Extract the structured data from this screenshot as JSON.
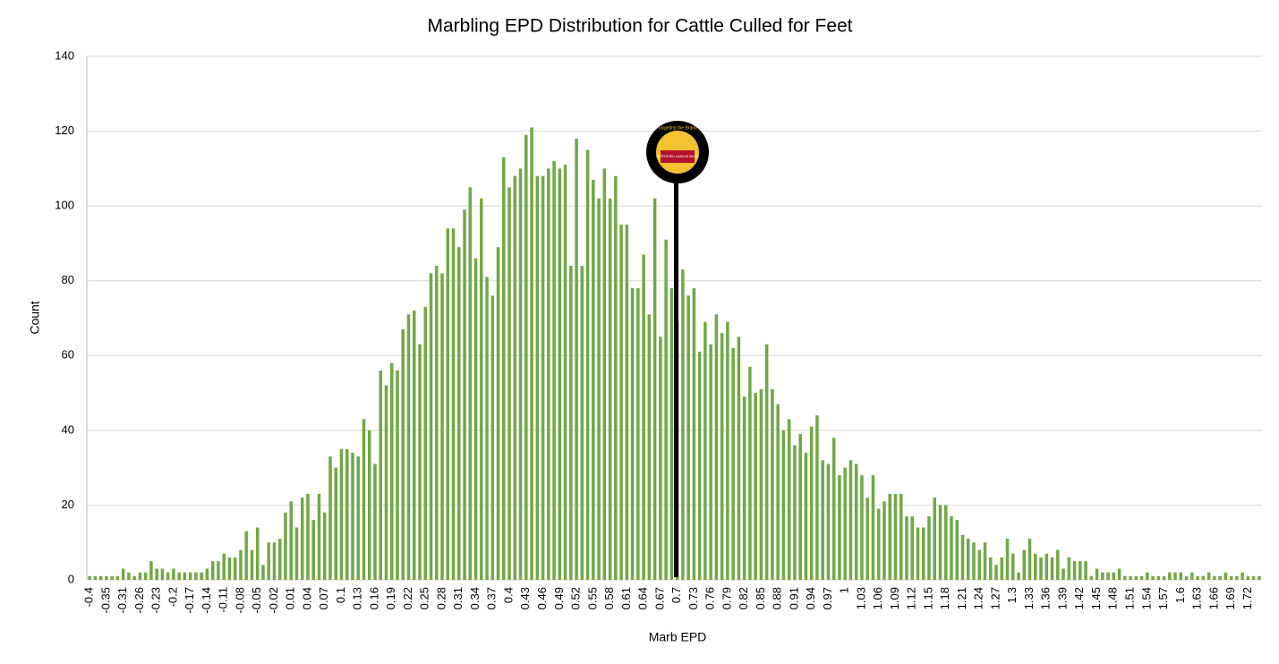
{
  "chart_data": {
    "type": "bar",
    "title": "Marbling EPD Distribution for Cattle Culled for Feet",
    "x_label": "Marb EPD",
    "y_label": "Count",
    "logo_text": [
      "Targeting the Brand",
      "CERTIFIED ANGUS BEEF"
    ],
    "color": "#70a845",
    "grid": true,
    "ylim": [
      0,
      140
    ],
    "yticks": [
      0,
      20,
      40,
      60,
      80,
      100,
      120,
      140
    ],
    "categories": [
      "-0.4",
      null,
      null,
      "-0.35",
      null,
      null,
      "-0.31",
      null,
      null,
      "-0.26",
      null,
      null,
      "-0.23",
      null,
      null,
      "-0.2",
      null,
      null,
      "-0.17",
      null,
      null,
      "-0.14",
      null,
      null,
      "-0.11",
      null,
      null,
      "-0.08",
      null,
      null,
      "-0.05",
      null,
      null,
      "-0.02",
      null,
      null,
      "0.01",
      null,
      null,
      "0.04",
      null,
      null,
      "0.07",
      null,
      null,
      "0.1",
      null,
      null,
      "0.13",
      null,
      null,
      "0.16",
      null,
      null,
      "0.19",
      null,
      null,
      "0.22",
      null,
      null,
      "0.25",
      null,
      null,
      "0.28",
      null,
      null,
      "0.31",
      null,
      null,
      "0.34",
      null,
      null,
      "0.37",
      null,
      null,
      "0.4",
      null,
      null,
      "0.43",
      null,
      null,
      "0.46",
      null,
      null,
      "0.49",
      null,
      null,
      "0.52",
      null,
      null,
      "0.55",
      null,
      null,
      "0.58",
      null,
      null,
      "0.61",
      null,
      null,
      "0.64",
      null,
      null,
      "0.67",
      null,
      null,
      "0.7",
      null,
      null,
      "0.73",
      null,
      null,
      "0.76",
      null,
      null,
      "0.79",
      null,
      null,
      "0.82",
      null,
      null,
      "0.85",
      null,
      null,
      "0.88",
      null,
      null,
      "0.91",
      null,
      null,
      "0.94",
      null,
      null,
      "0.97",
      null,
      null,
      "1",
      null,
      null,
      "1.03",
      null,
      null,
      "1.06",
      null,
      null,
      "1.09",
      null,
      null,
      "1.12",
      null,
      null,
      "1.15",
      null,
      null,
      "1.18",
      null,
      null,
      "1.21",
      null,
      null,
      "1.24",
      null,
      null,
      "1.27",
      null,
      null,
      "1.3",
      null,
      null,
      "1.33",
      null,
      null,
      "1.36",
      null,
      null,
      "1.39",
      null,
      null,
      "1.42",
      null,
      null,
      "1.45",
      null,
      null,
      "1.48",
      null,
      null,
      "1.51",
      null,
      null,
      "1.54",
      null,
      null,
      "1.57",
      null,
      null,
      "1.6",
      null,
      null,
      "1.63",
      null,
      null,
      "1.66",
      null,
      null,
      "1.69",
      null,
      null,
      "1.72",
      null,
      null
    ],
    "values": [
      1,
      1,
      1,
      1,
      1,
      1,
      3,
      2,
      1,
      2,
      2,
      5,
      3,
      3,
      2,
      3,
      2,
      2,
      2,
      2,
      2,
      3,
      5,
      5,
      7,
      6,
      6,
      8,
      13,
      8,
      14,
      4,
      10,
      10,
      11,
      18,
      21,
      14,
      22,
      23,
      16,
      23,
      18,
      33,
      30,
      35,
      35,
      34,
      33,
      43,
      40,
      31,
      56,
      52,
      58,
      56,
      67,
      71,
      72,
      63,
      73,
      82,
      84,
      82,
      94,
      94,
      89,
      99,
      105,
      86,
      102,
      81,
      76,
      89,
      113,
      105,
      108,
      110,
      119,
      121,
      108,
      108,
      110,
      112,
      110,
      111,
      84,
      118,
      84,
      115,
      107,
      102,
      110,
      102,
      108,
      95,
      95,
      78,
      78,
      87,
      71,
      102,
      65,
      91,
      78,
      69,
      83,
      76,
      78,
      61,
      69,
      63,
      71,
      66,
      69,
      62,
      65,
      49,
      57,
      50,
      51,
      63,
      51,
      47,
      40,
      43,
      36,
      39,
      34,
      41,
      44,
      32,
      31,
      38,
      28,
      30,
      32,
      31,
      28,
      22,
      28,
      19,
      21,
      23,
      23,
      23,
      17,
      17,
      14,
      14,
      17,
      22,
      20,
      20,
      17,
      16,
      12,
      11,
      10,
      8,
      10,
      6,
      4,
      6,
      11,
      7,
      2,
      8,
      11,
      7,
      6,
      7,
      6,
      8,
      3,
      6,
      5,
      5,
      5,
      1,
      3,
      2,
      2,
      2,
      3,
      1,
      1,
      1,
      1,
      2,
      1,
      1,
      1,
      2,
      2,
      2,
      1,
      2,
      1,
      1,
      2,
      1,
      1,
      2,
      1,
      1,
      2,
      1,
      1,
      1
    ]
  }
}
